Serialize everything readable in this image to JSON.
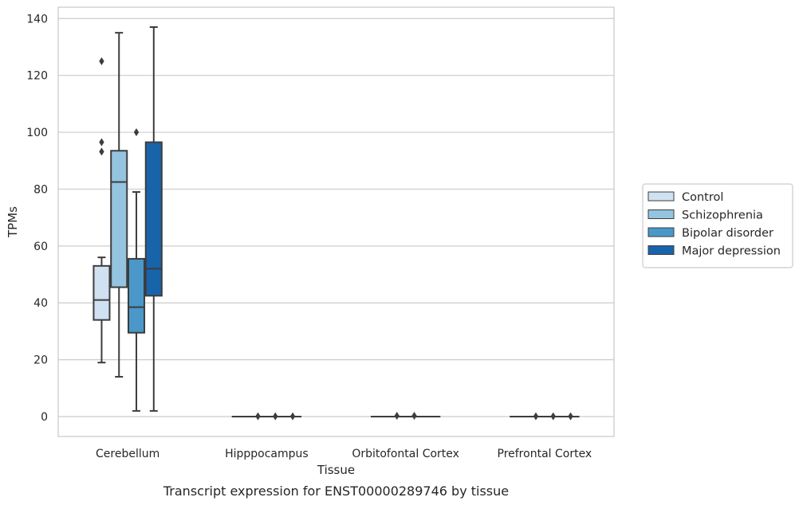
{
  "chart_data": {
    "type": "box",
    "title": "",
    "caption": "Transcript expression for ENST00000289746 by tissue",
    "xlabel": "Tissue",
    "ylabel": "TPMs",
    "ylim": [
      -7,
      144
    ],
    "yticks": [
      0,
      20,
      40,
      60,
      80,
      100,
      120,
      140
    ],
    "grid": "horizontal",
    "legend_placement": "right",
    "categories": [
      "Cerebellum",
      "Hipppocampus",
      "Orbitofontal Cortex",
      "Prefrontal Cortex"
    ],
    "series": [
      {
        "name": "Control",
        "color": "#d0e1f2",
        "boxes": [
          {
            "q1": 34,
            "median": 41,
            "q3": 53,
            "whisker_low": 19,
            "whisker_high": 56,
            "outliers": [
              125,
              96.5,
              93.2
            ]
          },
          {
            "q1": 0,
            "median": 0,
            "q3": 0,
            "whisker_low": 0,
            "whisker_high": 0,
            "outliers": []
          },
          {
            "q1": 0,
            "median": 0,
            "q3": 0,
            "whisker_low": 0,
            "whisker_high": 0,
            "outliers": []
          },
          {
            "q1": 0,
            "median": 0,
            "q3": 0,
            "whisker_low": 0,
            "whisker_high": 0,
            "outliers": []
          }
        ]
      },
      {
        "name": "Schizophrenia",
        "color": "#94c4df",
        "boxes": [
          {
            "q1": 45.5,
            "median": 82.5,
            "q3": 93.5,
            "whisker_low": 14,
            "whisker_high": 135,
            "outliers": []
          },
          {
            "q1": 0,
            "median": 0,
            "q3": 0,
            "whisker_low": 0,
            "whisker_high": 0,
            "outliers": [
              0.1
            ]
          },
          {
            "q1": 0,
            "median": 0,
            "q3": 0,
            "whisker_low": 0,
            "whisker_high": 0,
            "outliers": [
              0.3
            ]
          },
          {
            "q1": 0,
            "median": 0,
            "q3": 0,
            "whisker_low": 0,
            "whisker_high": 0,
            "outliers": [
              0.1
            ]
          }
        ]
      },
      {
        "name": "Bipolar disorder",
        "color": "#4a98c9",
        "boxes": [
          {
            "q1": 29.5,
            "median": 38.5,
            "q3": 55.5,
            "whisker_low": 2,
            "whisker_high": 79,
            "outliers": [
              100
            ]
          },
          {
            "q1": 0,
            "median": 0,
            "q3": 0,
            "whisker_low": 0,
            "whisker_high": 0,
            "outliers": [
              0.1
            ]
          },
          {
            "q1": 0,
            "median": 0,
            "q3": 0,
            "whisker_low": 0,
            "whisker_high": 0,
            "outliers": [
              0.3
            ]
          },
          {
            "q1": 0,
            "median": 0,
            "q3": 0,
            "whisker_low": 0,
            "whisker_high": 0,
            "outliers": [
              0.1
            ]
          }
        ]
      },
      {
        "name": "Major depression",
        "color": "#1764ab",
        "boxes": [
          {
            "q1": 42.5,
            "median": 52,
            "q3": 96.5,
            "whisker_low": 2,
            "whisker_high": 137,
            "outliers": []
          },
          {
            "q1": 0,
            "median": 0,
            "q3": 0,
            "whisker_low": 0,
            "whisker_high": 0,
            "outliers": [
              0.1
            ]
          },
          {
            "q1": 0,
            "median": 0,
            "q3": 0,
            "whisker_low": 0,
            "whisker_high": 0,
            "outliers": []
          },
          {
            "q1": 0,
            "median": 0,
            "q3": 0,
            "whisker_low": 0,
            "whisker_high": 0,
            "outliers": [
              0.1
            ]
          }
        ]
      }
    ]
  }
}
